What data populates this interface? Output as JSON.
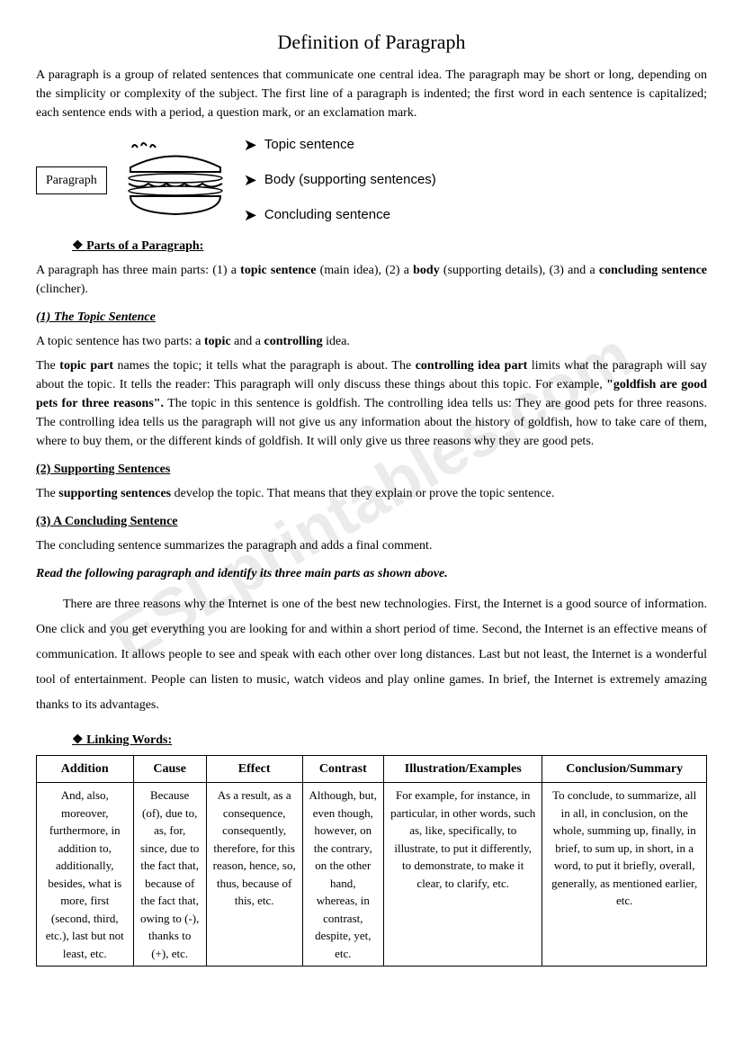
{
  "title": "Definition of Paragraph",
  "intro": "A paragraph is a group of related sentences that communicate one central idea. The paragraph may be short or long, depending on the simplicity or complexity of the subject. The first line of a paragraph is indented; the first word in each sentence is capitalized; each sentence ends with a period, a question mark, or an exclamation mark.",
  "diagram": {
    "box_label": "Paragraph",
    "labels": [
      "Topic sentence",
      "Body (supporting sentences)",
      "Concluding sentence"
    ]
  },
  "parts_heading": "Parts of a Paragraph:",
  "parts_intro_html": "A paragraph has three main parts: (1) a <b>topic sentence</b> (main idea), (2) a <b>body</b> (supporting details), (3) and a <b>concluding sentence</b> (clincher).",
  "topic": {
    "heading": "(1) The Topic Sentence",
    "line1_html": "A topic sentence has two parts: a <b>topic</b> and a <b>controlling</b> idea.",
    "line2_html": "The <b>topic part</b> names the topic; it tells what the paragraph is about. The <b>controlling idea part</b> limits what the paragraph will say about the topic. It tells the reader: This paragraph will only discuss these things about this topic. For example, <b>\"goldfish are good pets for three reasons\".</b> The topic in this sentence is goldfish. The controlling idea tells us: They are good pets for three reasons. The controlling idea tells us the paragraph will not give us any information about the history of goldfish, how to take care of them, where to buy them, or the different kinds of goldfish. It will only give us three reasons why they are good pets."
  },
  "supporting": {
    "heading": "(2) Supporting Sentences",
    "text_html": "The <b>supporting sentences</b> develop the topic. That means that they explain or prove the topic sentence."
  },
  "concluding": {
    "heading": "(3) A Concluding Sentence",
    "text": "The concluding sentence summarizes the paragraph and adds a final comment."
  },
  "instruction": "Read the following paragraph and identify its three main parts as shown above.",
  "sample": "There are three reasons why the Internet is one of the best new technologies. First, the Internet is a good source of information. One click and you get everything you are looking for and within a short period of time. Second, the Internet is an effective means of communication. It allows people to see and speak with each other over long distances. Last but not least, the Internet is a wonderful tool of entertainment. People can listen to music, watch videos and play online games. In brief, the Internet is extremely amazing thanks to its advantages.",
  "linking_heading": "Linking Words:",
  "table": {
    "headers": [
      "Addition",
      "Cause",
      "Effect",
      "Contrast",
      "Illustration/Examples",
      "Conclusion/Summary"
    ],
    "rows": [
      [
        "And, also, moreover, furthermore, in addition to, additionally, besides, what is more, first (second, third, etc.), last but not least, etc.",
        "Because (of), due to, as, for, since, due to the fact that, because of the fact that, owing to (-), thanks to (+), etc.",
        "As a result, as a consequence, consequently, therefore, for this reason, hence, so, thus, because of this, etc.",
        "Although, but, even though, however, on the contrary, on the other hand, whereas, in contrast, despite, yet, etc.",
        "For example, for instance, in particular, in other words, such as, like, specifically, to illustrate, to put it differently, to demonstrate, to make it clear, to clarify, etc.",
        "To conclude, to summarize, all in all, in conclusion, on the whole, summing up, finally, in brief, to sum up, in short, in a word, to put it briefly, overall, generally, as mentioned earlier, etc."
      ]
    ]
  },
  "watermark": "ESLprintables.com"
}
